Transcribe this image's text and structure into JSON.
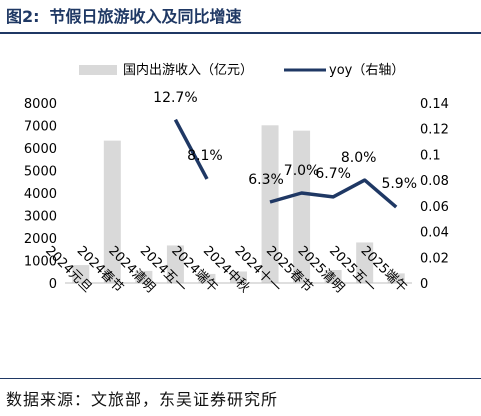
{
  "figure": {
    "number": "图2:",
    "title": "节假日旅游收入及同比增速",
    "source": "数据来源：文旅部，东吴证券研究所"
  },
  "colors": {
    "bar": "#d9d9d9",
    "line": "#1f3864",
    "title": "#1f3864",
    "text": "#000000"
  },
  "chart_data": {
    "type": "bar",
    "categories": [
      "2024元旦",
      "2024春节",
      "2024清明",
      "2024五一",
      "2024端午",
      "2024中秋",
      "2024十一",
      "2025春节",
      "2025清明",
      "2025五一",
      "2025端午"
    ],
    "series": [
      {
        "name": "国内出游收入（亿元）",
        "type": "bar",
        "axis": "left",
        "values": [
          797,
          6327,
          540,
          1669,
          403,
          510,
          7009,
          6770,
          578,
          1803,
          427
        ]
      },
      {
        "name": "yoy（右轴）",
        "type": "line",
        "axis": "right",
        "values": [
          null,
          null,
          null,
          0.127,
          0.081,
          null,
          0.063,
          0.07,
          0.067,
          0.08,
          0.059
        ],
        "labels": [
          null,
          null,
          null,
          "12.7%",
          "8.1%",
          null,
          "6.3%",
          "7.0%",
          "6.7%",
          "8.0%",
          "5.9%"
        ],
        "segments": [
          [
            3,
            4
          ],
          [
            6,
            10
          ]
        ]
      }
    ],
    "yleft": {
      "ticks": [
        "0",
        "1000",
        "2000",
        "3000",
        "4000",
        "5000",
        "6000",
        "7000",
        "8000"
      ],
      "min": 0,
      "max": 8000
    },
    "yright": {
      "ticks": [
        "0",
        "0.02",
        "0.04",
        "0.06",
        "0.08",
        "0.1",
        "0.12",
        "0.14"
      ],
      "min": 0,
      "max": 0.14
    },
    "legend_position": "top",
    "grid": false
  }
}
